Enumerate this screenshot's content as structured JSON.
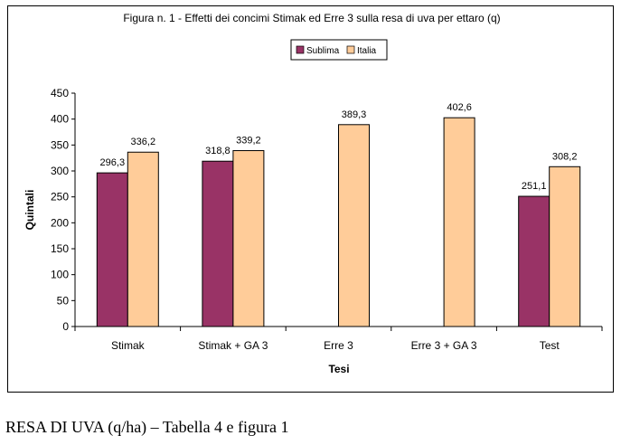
{
  "chart_data": {
    "type": "bar",
    "title": "Figura n. 1 - Effetti dei concimi Stimak ed Erre 3 sulla resa di uva per ettaro (q)",
    "xlabel": "Tesi",
    "ylabel": "Quintali",
    "ylim": [
      0,
      450
    ],
    "yticks": [
      0,
      50,
      100,
      150,
      200,
      250,
      300,
      350,
      400,
      450
    ],
    "categories": [
      "Stimak",
      "Stimak + GA 3",
      "Erre 3",
      "Erre 3 + GA 3",
      "Test"
    ],
    "series": [
      {
        "name": "Sublima",
        "color": "#993366",
        "values": [
          296.3,
          318.8,
          null,
          null,
          251.1
        ],
        "labels": [
          "296,3",
          "318,8",
          null,
          null,
          "251,1"
        ]
      },
      {
        "name": "Italia",
        "color": "#FFCC99",
        "values": [
          336.2,
          339.2,
          389.3,
          402.6,
          308.2
        ],
        "labels": [
          "336,2",
          "339,2",
          "389,3",
          "402,6",
          "308,2"
        ]
      }
    ],
    "legend": "top-center",
    "grid": false
  },
  "caption": "RESA DI UVA (q/ha) – Tabella 4 e figura 1"
}
